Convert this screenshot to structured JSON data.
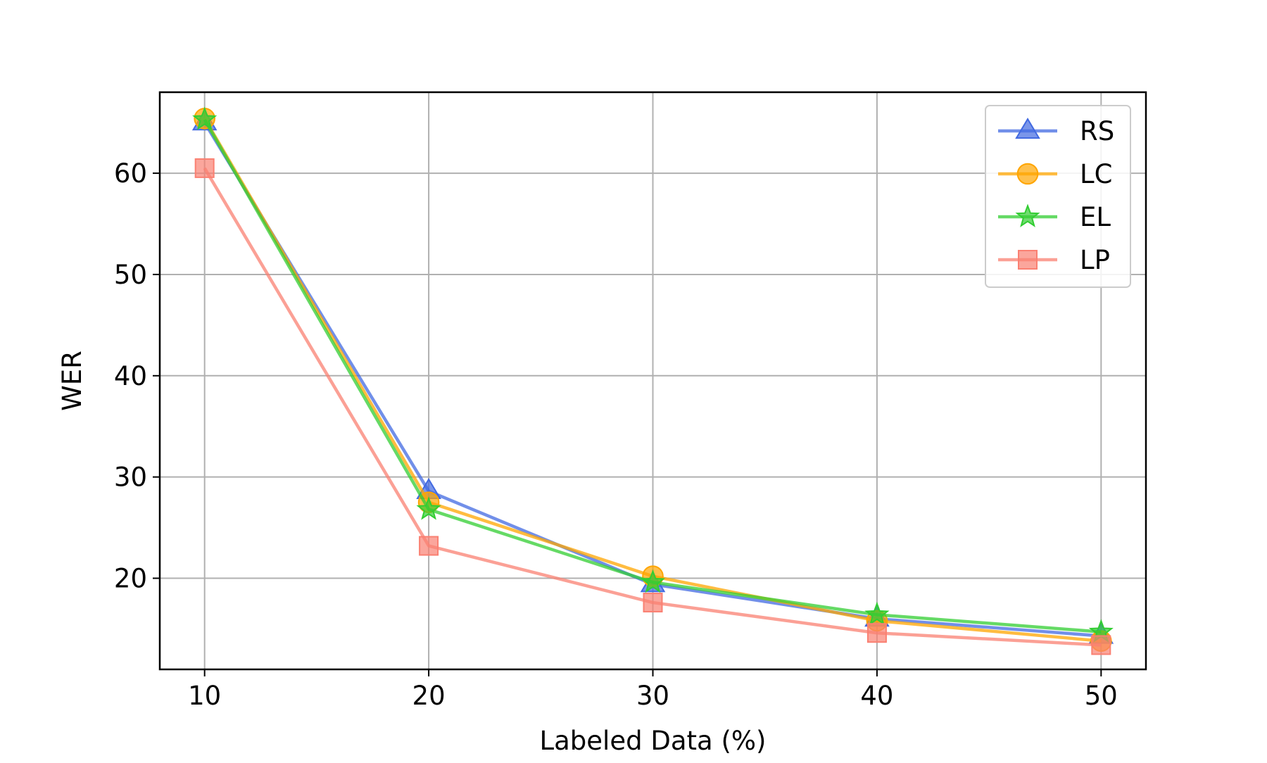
{
  "chart_data": {
    "type": "line",
    "title": "",
    "xlabel": "Labeled Data (%)",
    "ylabel": "WER",
    "x": [
      10,
      20,
      30,
      40,
      50
    ],
    "xlim": [
      8,
      52
    ],
    "ylim": [
      11,
      68
    ],
    "xticks": [
      10,
      20,
      30,
      40,
      50
    ],
    "yticks": [
      20,
      30,
      40,
      50,
      60
    ],
    "grid": true,
    "legend_position": "top-right",
    "series": [
      {
        "name": "RS",
        "marker": "triangle",
        "color": "#4169E1",
        "values": [
          65.0,
          28.6,
          19.4,
          16.0,
          14.3
        ]
      },
      {
        "name": "LC",
        "marker": "circle",
        "color": "#FFA500",
        "values": [
          65.4,
          27.5,
          20.2,
          15.8,
          13.8
        ]
      },
      {
        "name": "EL",
        "marker": "star",
        "color": "#32CD32",
        "values": [
          65.3,
          26.8,
          19.6,
          16.4,
          14.7
        ]
      },
      {
        "name": "LP",
        "marker": "square",
        "color": "#FA8072",
        "values": [
          60.5,
          23.2,
          17.6,
          14.6,
          13.4
        ]
      }
    ]
  }
}
